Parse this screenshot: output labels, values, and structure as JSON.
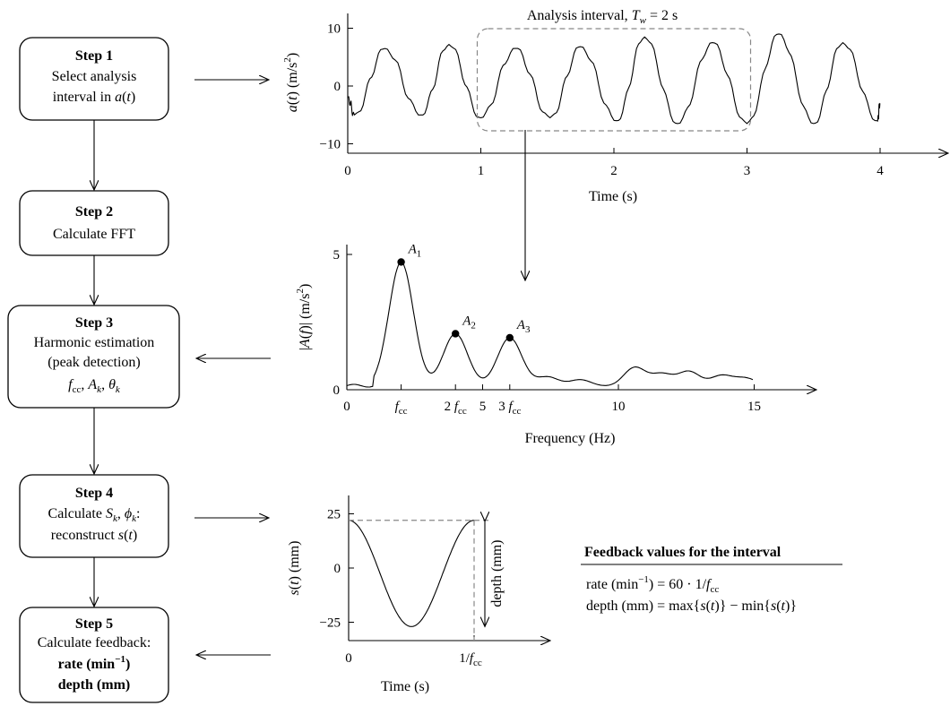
{
  "steps": [
    {
      "title": "Step 1",
      "lines": [
        "Select analysis",
        "interval in a(t)"
      ]
    },
    {
      "title": "Step 2",
      "lines": [
        "Calculate FFT"
      ]
    },
    {
      "title": "Step 3",
      "lines": [
        "Harmonic estimation",
        "(peak detection)",
        "f_cc, A_k, θ_k"
      ]
    },
    {
      "title": "Step 4",
      "lines": [
        "Calculate S_k, ϕ_k:",
        "reconstruct s(t)"
      ]
    },
    {
      "title": "Step 5",
      "lines": [
        "Calculate feedback:",
        "rate (min⁻¹)",
        "depth (mm)"
      ]
    }
  ],
  "chart_data": [
    {
      "type": "line",
      "id": "acceleration",
      "title": "Analysis interval, T_w = 2 s",
      "xlabel": "Time (s)",
      "ylabel": "a(t) (m/s²)",
      "xlim": [
        0,
        4.5
      ],
      "ylim": [
        -12,
        14
      ],
      "x_ticks": [
        0,
        1,
        2,
        3,
        4
      ],
      "y_ticks": [
        -10,
        0,
        10
      ],
      "analysis_interval": [
        1,
        3
      ],
      "cycle_period_s": 0.5,
      "peaks": [
        {
          "t": 0.28,
          "v": 6.5
        },
        {
          "t": 0.76,
          "v": 7.2
        },
        {
          "t": 1.26,
          "v": 6.5
        },
        {
          "t": 1.75,
          "v": 6.8
        },
        {
          "t": 2.23,
          "v": 8.5
        },
        {
          "t": 2.74,
          "v": 7.5
        },
        {
          "t": 3.24,
          "v": 9.0
        },
        {
          "t": 3.72,
          "v": 7.5
        }
      ],
      "troughs": [
        {
          "t": 0.05,
          "v": -5.0
        },
        {
          "t": 0.55,
          "v": -5.0
        },
        {
          "t": 1.0,
          "v": -5.5
        },
        {
          "t": 1.52,
          "v": -5.5
        },
        {
          "t": 2.02,
          "v": -6.0
        },
        {
          "t": 2.48,
          "v": -6.5
        },
        {
          "t": 3.0,
          "v": -6.5
        },
        {
          "t": 3.5,
          "v": -6.5
        },
        {
          "t": 3.98,
          "v": -6.0
        }
      ]
    },
    {
      "type": "line",
      "id": "spectrum",
      "xlabel": "Frequency (Hz)",
      "ylabel": "|A(f)| (m/s²)",
      "xlim": [
        0,
        17
      ],
      "ylim": [
        0,
        5.5
      ],
      "x_ticks": [
        0,
        5,
        10,
        15
      ],
      "y_ticks": [
        0,
        5
      ],
      "f_cc": 2,
      "harmonic_tick_labels": [
        "f_cc",
        "2 f_cc",
        "3 f_cc"
      ],
      "harmonics": [
        {
          "label": "A_1",
          "f": 2.0,
          "amp": 4.6
        },
        {
          "label": "A_2",
          "f": 4.0,
          "amp": 1.95
        },
        {
          "label": "A_3",
          "f": 6.0,
          "amp": 1.8
        }
      ],
      "noise_bumps": [
        {
          "f": 7.4,
          "amp": 0.35
        },
        {
          "f": 8.6,
          "amp": 0.25
        },
        {
          "f": 10.6,
          "amp": 0.7
        },
        {
          "f": 11.6,
          "amp": 0.45
        },
        {
          "f": 12.6,
          "amp": 0.55
        },
        {
          "f": 13.8,
          "amp": 0.4
        },
        {
          "f": 14.7,
          "amp": 0.3
        }
      ]
    },
    {
      "type": "line",
      "id": "displacement",
      "xlabel": "Time (s)",
      "ylabel": "s(t) (mm)",
      "xlim": [
        0,
        1.15
      ],
      "ylim": [
        -30,
        30
      ],
      "x_tick_labels": [
        "0",
        "1/f_cc"
      ],
      "y_ticks": [
        -25,
        0,
        25
      ],
      "max_mm": 22,
      "min_mm": -27,
      "depth_label": "depth (mm)"
    }
  ],
  "feedback": {
    "heading": "Feedback values for the interval",
    "rate_formula": "rate (min⁻¹) = 60 · 1/f_cc",
    "depth_formula": "depth (mm) = max{s(t)} − min{s(t)}"
  }
}
